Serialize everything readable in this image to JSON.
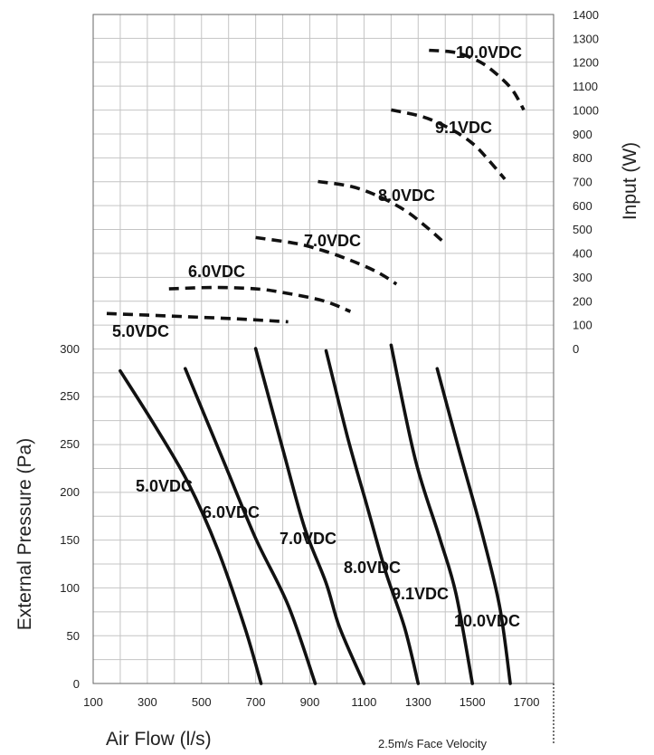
{
  "chart_data": {
    "type": "line",
    "x_axis": {
      "label": "Air Flow (l/s)",
      "range": [
        100,
        1800
      ],
      "ticks": [
        "100",
        "300",
        "500",
        "700",
        "900",
        "1100",
        "1300",
        "1500",
        "1700"
      ]
    },
    "y_axis_left": {
      "label": "External Pressure (Pa)",
      "range": [
        0,
        300
      ],
      "ticks": [
        "0",
        "50",
        "100",
        "150",
        "200",
        "250",
        "250",
        "300"
      ]
    },
    "y_axis_right": {
      "label": "Input (W)",
      "range": [
        0,
        1400
      ],
      "ticks": [
        "0",
        "100",
        "200",
        "300",
        "400",
        "500",
        "600",
        "700",
        "800",
        "900",
        "1000",
        "1100",
        "1200",
        "1300",
        "1400"
      ]
    },
    "footnote": "2.5m/s Face Velocity",
    "grid": true,
    "pressure_series": [
      {
        "name": "5.0VDC",
        "points": [
          [
            200,
            280
          ],
          [
            330,
            230
          ],
          [
            450,
            180
          ],
          [
            560,
            120
          ],
          [
            660,
            50
          ],
          [
            720,
            0
          ]
        ]
      },
      {
        "name": "6.0VDC",
        "points": [
          [
            440,
            282
          ],
          [
            580,
            200
          ],
          [
            700,
            130
          ],
          [
            820,
            70
          ],
          [
            920,
            0
          ]
        ]
      },
      {
        "name": "7.0VDC",
        "points": [
          [
            700,
            300
          ],
          [
            800,
            210
          ],
          [
            880,
            140
          ],
          [
            960,
            90
          ],
          [
            1010,
            50
          ],
          [
            1100,
            0
          ]
        ]
      },
      {
        "name": "8.0VDC",
        "points": [
          [
            960,
            298
          ],
          [
            1040,
            220
          ],
          [
            1110,
            160
          ],
          [
            1180,
            100
          ],
          [
            1250,
            50
          ],
          [
            1300,
            0
          ]
        ]
      },
      {
        "name": "9.1VDC",
        "points": [
          [
            1200,
            303
          ],
          [
            1290,
            200
          ],
          [
            1380,
            130
          ],
          [
            1440,
            80
          ],
          [
            1500,
            0
          ]
        ]
      },
      {
        "name": "10.0VDC",
        "points": [
          [
            1370,
            282
          ],
          [
            1450,
            210
          ],
          [
            1530,
            140
          ],
          [
            1600,
            70
          ],
          [
            1640,
            0
          ]
        ]
      }
    ],
    "input_series": [
      {
        "name": "5.0VDC",
        "points": [
          [
            150,
            147
          ],
          [
            300,
            140
          ],
          [
            450,
            133
          ],
          [
            600,
            126
          ],
          [
            730,
            118
          ],
          [
            820,
            112
          ]
        ]
      },
      {
        "name": "6.0VDC",
        "points": [
          [
            380,
            250
          ],
          [
            550,
            256
          ],
          [
            700,
            250
          ],
          [
            800,
            235
          ],
          [
            950,
            200
          ],
          [
            1050,
            155
          ]
        ]
      },
      {
        "name": "7.0VDC",
        "points": [
          [
            700,
            465
          ],
          [
            850,
            440
          ],
          [
            950,
            410
          ],
          [
            1050,
            370
          ],
          [
            1150,
            320
          ],
          [
            1220,
            270
          ]
        ]
      },
      {
        "name": "8.0VDC",
        "points": [
          [
            930,
            700
          ],
          [
            1050,
            680
          ],
          [
            1150,
            640
          ],
          [
            1250,
            580
          ],
          [
            1330,
            510
          ],
          [
            1400,
            440
          ]
        ]
      },
      {
        "name": "9.1VDC",
        "points": [
          [
            1200,
            1000
          ],
          [
            1320,
            970
          ],
          [
            1420,
            920
          ],
          [
            1500,
            860
          ],
          [
            1560,
            790
          ],
          [
            1620,
            710
          ]
        ]
      },
      {
        "name": "10.0VDC",
        "points": [
          [
            1340,
            1250
          ],
          [
            1440,
            1240
          ],
          [
            1530,
            1200
          ],
          [
            1600,
            1140
          ],
          [
            1650,
            1080
          ],
          [
            1690,
            1000
          ]
        ]
      }
    ]
  }
}
